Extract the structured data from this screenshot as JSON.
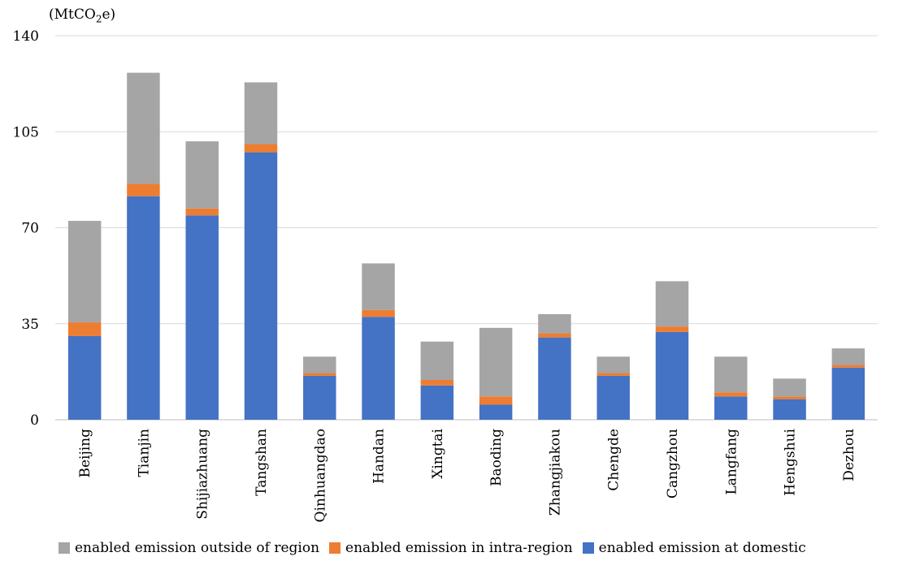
{
  "chart_data": {
    "type": "bar",
    "stacked": true,
    "unit_label": {
      "prefix": "(MtCO",
      "subscript": "2",
      "suffix": "e)"
    },
    "categories": [
      "Beijing",
      "Tianjin",
      "Shijiazhuang",
      "Tangshan",
      "Qinhuangdao",
      "Handan",
      "Xingtai",
      "Baoding",
      "Zhangjiakou",
      "Chengde",
      "Cangzhou",
      "Langfang",
      "Hengshui",
      "Dezhou"
    ],
    "series": [
      {
        "name": "enabled emission at domestic",
        "color": "#4472C4",
        "values": [
          30.5,
          81.5,
          74.5,
          97.5,
          16,
          37.5,
          12.5,
          5.5,
          30,
          16,
          32,
          8.5,
          7.5,
          19
        ]
      },
      {
        "name": "enabled emission in intra-region",
        "color": "#ED7D31",
        "values": [
          5,
          4.5,
          2.5,
          3,
          1,
          2.5,
          2,
          3,
          1.5,
          1,
          2,
          1.5,
          1,
          1
        ]
      },
      {
        "name": "enabled emission outside of region",
        "color": "#A5A5A5",
        "values": [
          37,
          40.5,
          24.5,
          22.5,
          6,
          17,
          14,
          25,
          7,
          6,
          16.5,
          13,
          6.5,
          6
        ]
      }
    ],
    "legend_order": [
      2,
      1,
      0
    ],
    "legend_position": "bottom",
    "ylim": [
      0,
      140
    ],
    "yticks": [
      0,
      35,
      70,
      105,
      140
    ],
    "grid": true
  }
}
